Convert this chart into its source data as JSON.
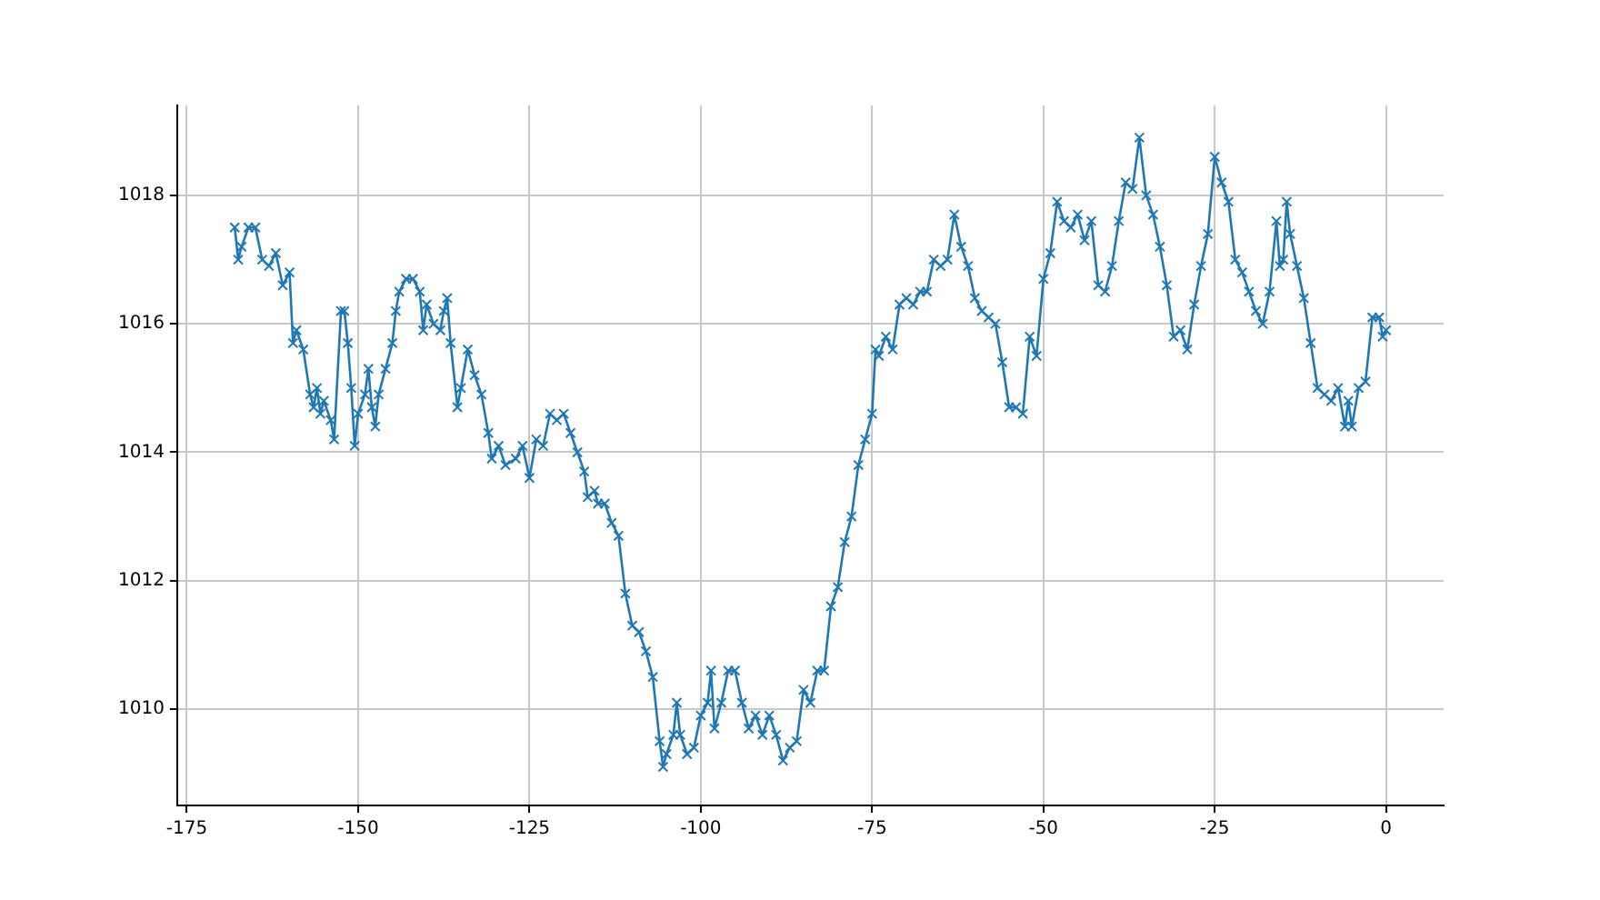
{
  "chart_data": {
    "type": "line",
    "xlim": [
      -176.4,
      8.4
    ],
    "ylim": [
      1008.5,
      1019.4
    ],
    "xticks": [
      -175,
      -150,
      -125,
      -100,
      -75,
      -50,
      -25,
      0
    ],
    "yticks": [
      1010,
      1012,
      1014,
      1016,
      1018
    ],
    "grid": true,
    "legend": false,
    "marker": "cross",
    "line_style": "solid",
    "series": [
      {
        "color": "#1f77b4",
        "x": [
          -168,
          -167.5,
          -167,
          -166,
          -165,
          -164,
          -163,
          -162,
          -161,
          -160,
          -159.5,
          -159,
          -158,
          -157,
          -156.5,
          -156,
          -155.5,
          -155,
          -154,
          -153.5,
          -152.5,
          -152,
          -151.5,
          -151,
          -150.5,
          -150,
          -149,
          -148.5,
          -148,
          -147.5,
          -147,
          -146,
          -145,
          -144.5,
          -144,
          -143,
          -142,
          -141,
          -140.5,
          -140,
          -139,
          -138,
          -137.5,
          -137,
          -136.5,
          -135.5,
          -135,
          -134,
          -133,
          -132,
          -131,
          -130.5,
          -129.5,
          -128.5,
          -127,
          -126,
          -125,
          -124,
          -123,
          -122,
          -121,
          -120,
          -119,
          -118,
          -117,
          -116.5,
          -115.5,
          -115,
          -114,
          -113,
          -112,
          -111,
          -110,
          -109,
          -108,
          -107,
          -106,
          -105.5,
          -105,
          -104,
          -103.5,
          -103,
          -102,
          -101,
          -100,
          -99,
          -98.5,
          -98,
          -97,
          -96,
          -95,
          -94,
          -93,
          -92,
          -91,
          -90,
          -89,
          -88,
          -87,
          -86,
          -85,
          -84,
          -83,
          -82,
          -81,
          -80,
          -79,
          -78,
          -77,
          -76,
          -75,
          -74.5,
          -74,
          -73,
          -72,
          -71,
          -70,
          -69,
          -68,
          -67,
          -66,
          -65,
          -64,
          -63,
          -62,
          -61,
          -60,
          -59,
          -58,
          -57,
          -56,
          -55,
          -54,
          -53,
          -52,
          -51,
          -50,
          -49,
          -48,
          -47,
          -46,
          -45,
          -44,
          -43,
          -42,
          -41,
          -40,
          -39,
          -38,
          -37,
          -36,
          -35,
          -34,
          -33,
          -32,
          -31,
          -30,
          -29,
          -28,
          -27,
          -26,
          -25,
          -24,
          -23,
          -22,
          -21,
          -20,
          -19,
          -18,
          -17,
          -16,
          -15.5,
          -15,
          -14.5,
          -14,
          -13,
          -12,
          -11,
          -10,
          -9,
          -8,
          -7,
          -6,
          -5.5,
          -5,
          -4,
          -3,
          -2,
          -1,
          -0.5,
          0
        ],
        "values": [
          1017.5,
          1017.0,
          1017.2,
          1017.5,
          1017.5,
          1017.0,
          1016.9,
          1017.1,
          1016.6,
          1016.8,
          1015.7,
          1015.9,
          1015.6,
          1014.9,
          1014.7,
          1015.0,
          1014.6,
          1014.8,
          1014.5,
          1014.2,
          1016.2,
          1016.2,
          1015.7,
          1015.0,
          1014.1,
          1014.6,
          1014.9,
          1015.3,
          1014.7,
          1014.4,
          1014.9,
          1015.3,
          1015.7,
          1016.2,
          1016.5,
          1016.7,
          1016.7,
          1016.5,
          1015.9,
          1016.3,
          1016.0,
          1015.9,
          1016.2,
          1016.4,
          1015.7,
          1014.7,
          1015.0,
          1015.6,
          1015.2,
          1014.9,
          1014.3,
          1013.9,
          1014.1,
          1013.8,
          1013.9,
          1014.1,
          1013.6,
          1014.2,
          1014.1,
          1014.6,
          1014.5,
          1014.6,
          1014.3,
          1014.0,
          1013.7,
          1013.3,
          1013.4,
          1013.2,
          1013.2,
          1012.9,
          1012.7,
          1011.8,
          1011.3,
          1011.2,
          1010.9,
          1010.5,
          1009.5,
          1009.1,
          1009.3,
          1009.6,
          1010.1,
          1009.6,
          1009.3,
          1009.4,
          1009.9,
          1010.1,
          1010.6,
          1009.7,
          1010.1,
          1010.6,
          1010.6,
          1010.1,
          1009.7,
          1009.9,
          1009.6,
          1009.9,
          1009.6,
          1009.2,
          1009.4,
          1009.5,
          1010.3,
          1010.1,
          1010.6,
          1010.6,
          1011.6,
          1011.9,
          1012.6,
          1013.0,
          1013.8,
          1014.2,
          1014.6,
          1015.6,
          1015.5,
          1015.8,
          1015.6,
          1016.3,
          1016.4,
          1016.3,
          1016.5,
          1016.5,
          1017.0,
          1016.9,
          1017.0,
          1017.7,
          1017.2,
          1016.9,
          1016.4,
          1016.2,
          1016.1,
          1016.0,
          1015.4,
          1014.7,
          1014.7,
          1014.6,
          1015.8,
          1015.5,
          1016.7,
          1017.1,
          1017.9,
          1017.6,
          1017.5,
          1017.7,
          1017.3,
          1017.6,
          1016.6,
          1016.5,
          1016.9,
          1017.6,
          1018.2,
          1018.1,
          1018.9,
          1018.0,
          1017.7,
          1017.2,
          1016.6,
          1015.8,
          1015.9,
          1015.6,
          1016.3,
          1016.9,
          1017.4,
          1018.6,
          1018.2,
          1017.9,
          1017.0,
          1016.8,
          1016.5,
          1016.2,
          1016.0,
          1016.5,
          1017.6,
          1016.9,
          1017.0,
          1017.9,
          1017.4,
          1016.9,
          1016.4,
          1015.7,
          1015.0,
          1014.9,
          1014.8,
          1015.0,
          1014.4,
          1014.8,
          1014.4,
          1015.0,
          1015.1,
          1016.1,
          1016.1,
          1015.8,
          1015.9
        ]
      }
    ]
  }
}
